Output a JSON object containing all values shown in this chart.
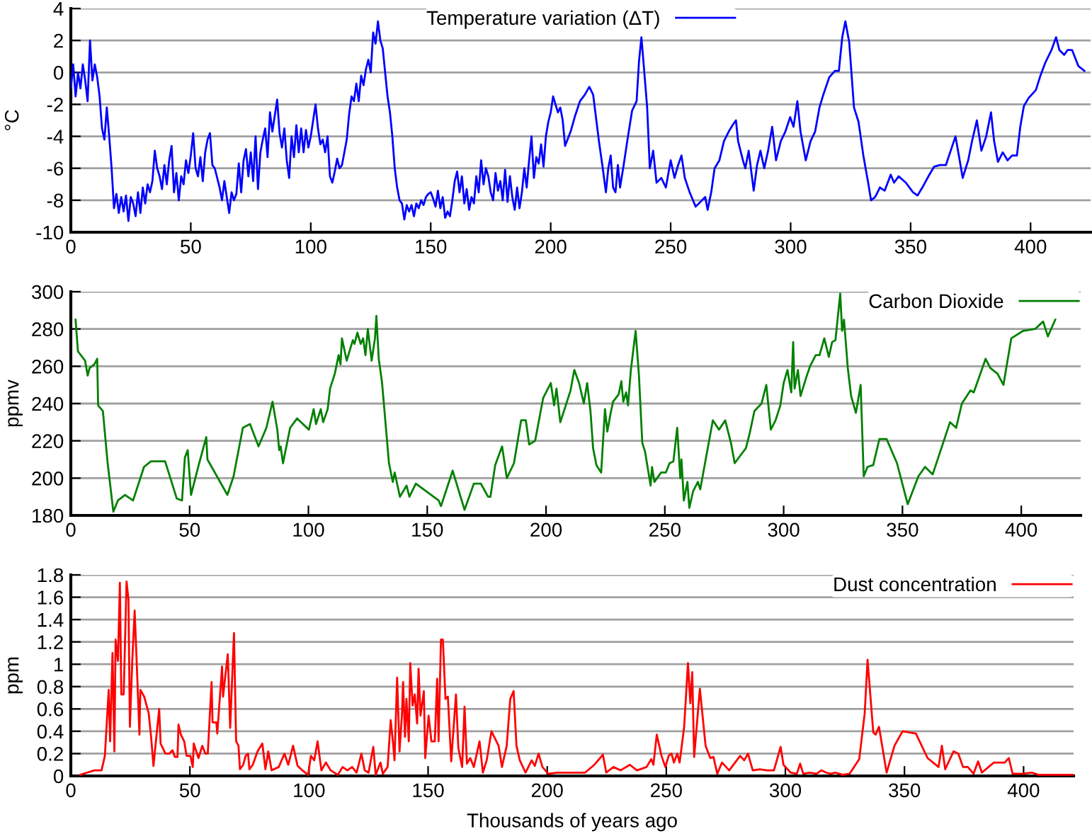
{
  "chart_data": [
    {
      "type": "line",
      "ylabel": "°C",
      "xlim": [
        0,
        425
      ],
      "xticks": [
        0,
        50,
        100,
        150,
        200,
        250,
        300,
        350,
        400
      ],
      "ylim": [
        -10,
        4
      ],
      "yticks": [
        -10,
        -8,
        -6,
        -4,
        -2,
        0,
        2,
        4
      ],
      "grid": "y",
      "legend": "top",
      "series": [
        {
          "name": "Temperature variation (ΔT)",
          "color": "#0000ff",
          "x": [
            0,
            1,
            2,
            3,
            4,
            5,
            6,
            7,
            8,
            9,
            10,
            11,
            12,
            13,
            14,
            15,
            16,
            17,
            18,
            19,
            20,
            21,
            22,
            23,
            24,
            25,
            26,
            27,
            28,
            29,
            30,
            31,
            32,
            33,
            34,
            35,
            36,
            37,
            38,
            39,
            40,
            41,
            42,
            43,
            44,
            45,
            46,
            47,
            48,
            49,
            50,
            51,
            52,
            53,
            54,
            55,
            56,
            57,
            58,
            59,
            60,
            61,
            62,
            63,
            64,
            65,
            66,
            67,
            68,
            69,
            70,
            71,
            72,
            73,
            74,
            75,
            76,
            77,
            78,
            79,
            80,
            81,
            82,
            83,
            84,
            85,
            86,
            87,
            88,
            89,
            90,
            91,
            92,
            93,
            94,
            95,
            96,
            97,
            98,
            99,
            100,
            101,
            102,
            103,
            104,
            105,
            106,
            107,
            108,
            109,
            110,
            111,
            112,
            113,
            114,
            115,
            116,
            117,
            118,
            119,
            120,
            121,
            122,
            123,
            124,
            125,
            126,
            127,
            128,
            129,
            130,
            131,
            132,
            133,
            134,
            135,
            136,
            137,
            138,
            139,
            140,
            141,
            142,
            143,
            144,
            145,
            146,
            147,
            148,
            149,
            150,
            151,
            152,
            153,
            154,
            155,
            156,
            157,
            158,
            159,
            160,
            161,
            162,
            163,
            164,
            165,
            166,
            167,
            168,
            169,
            170,
            171,
            172,
            173,
            174,
            175,
            176,
            177,
            178,
            179,
            180,
            181,
            182,
            183,
            184,
            185,
            186,
            187,
            188,
            189,
            190,
            191,
            192,
            193,
            194,
            195,
            196,
            197,
            198,
            199,
            200,
            201,
            202,
            203,
            204,
            205,
            206,
            208.3,
            210.2,
            212.2,
            214.2,
            216.1,
            217.7,
            219.1,
            220.1,
            221.7,
            223,
            224,
            225,
            226,
            227,
            228,
            228.9,
            230.3,
            231.9,
            233.9,
            235.8,
            236.8,
            237.8,
            238.8,
            240.2,
            241.3,
            242.7,
            244.1,
            246.1,
            248,
            250,
            251.6,
            253.1,
            254.5,
            255.9,
            257.9,
            260.4,
            262.4,
            264.4,
            265.4,
            266.9,
            268.3,
            270.3,
            272.2,
            274.2,
            275.8,
            277.2,
            278.1,
            280.1,
            281.1,
            282.5,
            284.6,
            286,
            287.4,
            289,
            290.6,
            292.3,
            293.9,
            295.9,
            297.8,
            299.8,
            301.2,
            302.8,
            304.1,
            306.3,
            308.3,
            310.2,
            312,
            313.6,
            316.1,
            318.5,
            320.1,
            321.5,
            322.8,
            324.4,
            326.4,
            328.3,
            330.3,
            332.3,
            333.5,
            335.2,
            337.2,
            339.2,
            341.7,
            343.1,
            345,
            348,
            351,
            352.9,
            354.9,
            357.8,
            359.8,
            362.2,
            364.7,
            366.7,
            368.7,
            370.1,
            371.7,
            374,
            375.6,
            377.6,
            379.5,
            381.5,
            383.5,
            384.8,
            386.4,
            388.4,
            390.4,
            392.3,
            394.3,
            395.7,
            397.2,
            399.2,
            402.2,
            404.1,
            406.1,
            408.7,
            410.6,
            412,
            414,
            415.4,
            417.3,
            419.9,
            422.4
          ],
          "values": [
            -1,
            0.5,
            -1.5,
            0,
            -1,
            0.5,
            -0.5,
            -1.8,
            2,
            -0.5,
            0.5,
            -0.3,
            -1.5,
            -3.5,
            -4.2,
            -2.2,
            -4,
            -6,
            -8.5,
            -7.6,
            -8.8,
            -7.8,
            -8.7,
            -7.7,
            -9.3,
            -7.8,
            -8.2,
            -9,
            -7.5,
            -8.8,
            -7.2,
            -8.2,
            -7,
            -7.5,
            -6.8,
            -4.9,
            -6,
            -6.5,
            -7.3,
            -5.8,
            -7,
            -5.5,
            -4.6,
            -7.5,
            -6.3,
            -8,
            -6.5,
            -7,
            -5.5,
            -6.3,
            -5.2,
            -3.8,
            -6,
            -6.5,
            -5.3,
            -6.8,
            -5,
            -4.2,
            -3.8,
            -5.8,
            -6,
            -6.6,
            -7.2,
            -8,
            -6.8,
            -7.8,
            -8.8,
            -7.5,
            -8,
            -7.6,
            -5.7,
            -7.5,
            -5.5,
            -4.8,
            -6.5,
            -5,
            -6.8,
            -4,
            -7.3,
            -5,
            -4.2,
            -3.5,
            -5.3,
            -2.5,
            -3.7,
            -2.7,
            -1.7,
            -3.8,
            -4.7,
            -3.5,
            -5.5,
            -6.6,
            -4,
            -5.3,
            -3.3,
            -5,
            -3.5,
            -5,
            -3.6,
            -4.7,
            -4,
            -3,
            -2,
            -3.5,
            -4.5,
            -4.2,
            -5,
            -4,
            -6.5,
            -6.9,
            -6.2,
            -5.4,
            -6,
            -5.8,
            -5,
            -4.2,
            -2.6,
            -1.5,
            -1.8,
            -0.7,
            -1.8,
            -0.2,
            -0.8,
            0.2,
            0.8,
            0,
            2.5,
            1.8,
            3.2,
            2,
            1.5,
            0,
            -1.5,
            -2.5,
            -4,
            -6,
            -7.2,
            -8,
            -8.2,
            -9.2,
            -8.3,
            -8.7,
            -8.3,
            -9,
            -8.2,
            -8.5,
            -8,
            -8.3,
            -7.8,
            -7.6,
            -7.5,
            -7.9,
            -8.4,
            -7.4,
            -8.5,
            -7.8,
            -9.1,
            -8.7,
            -9,
            -8,
            -6.8,
            -6.2,
            -7.5,
            -6.5,
            -8.2,
            -7.3,
            -8.6,
            -7.8,
            -8.2,
            -6.5,
            -7.5,
            -5.5,
            -7,
            -6,
            -6.5,
            -7.5,
            -8,
            -6.3,
            -7.4,
            -6.8,
            -8,
            -6.1,
            -8.1,
            -6.5,
            -7.8,
            -8.6,
            -7.2,
            -8.5,
            -7.5,
            -6,
            -7.2,
            -5.5,
            -4,
            -6.6,
            -5.3,
            -5.7,
            -4.5,
            -5.9,
            -4,
            -3.1,
            -2.5,
            -1.5,
            -2,
            -2.5,
            -2.2,
            -3,
            -4.6,
            -3.7,
            -2.7,
            -1.8,
            -1.4,
            -0.9,
            -1.4,
            -3.1,
            -4.3,
            -6,
            -7.5,
            -6,
            -5.2,
            -7.2,
            -7.5,
            -5.8,
            -7.2,
            -5.9,
            -4.3,
            -2.4,
            -1.8,
            0.7,
            2.2,
            0.4,
            -2.2,
            -6,
            -4.9,
            -6.9,
            -6.6,
            -7.2,
            -5.5,
            -6.6,
            -5.8,
            -5.2,
            -6.6,
            -7.5,
            -8.4,
            -8.1,
            -7.8,
            -8.6,
            -7.5,
            -6,
            -5.5,
            -4.3,
            -3.7,
            -3.3,
            -3,
            -4.3,
            -5.5,
            -6,
            -4.9,
            -7.4,
            -5.8,
            -4.9,
            -6,
            -4.9,
            -3.4,
            -5.5,
            -4.3,
            -3.7,
            -2.8,
            -3.4,
            -1.8,
            -3.7,
            -5.5,
            -4.3,
            -3.7,
            -2.2,
            -1.4,
            -0.3,
            0.1,
            0.1,
            2.2,
            3.2,
            1.9,
            -2.2,
            -3.1,
            -5.2,
            -6.9,
            -8,
            -7.8,
            -7.2,
            -7.4,
            -6.4,
            -6.9,
            -6.5,
            -6.9,
            -7.5,
            -7.7,
            -7.2,
            -6.4,
            -5.9,
            -5.8,
            -5.8,
            -4.9,
            -4,
            -5.2,
            -6.6,
            -5.5,
            -4.3,
            -3,
            -4.9,
            -4,
            -2.5,
            -4.3,
            -5.6,
            -5,
            -5.5,
            -5.2,
            -5.2,
            -3.4,
            -2.1,
            -1.6,
            -1.1,
            -0.2,
            0.6,
            1.4,
            2.2,
            1.4,
            1.1,
            1.4,
            1.4,
            0.4,
            0.1
          ]
        }
      ]
    },
    {
      "type": "line",
      "ylabel": "ppmv",
      "xlim": [
        0,
        425
      ],
      "xticks": [
        0,
        50,
        100,
        150,
        200,
        250,
        300,
        350,
        400
      ],
      "ylim": [
        180,
        300
      ],
      "yticks": [
        180,
        200,
        220,
        240,
        260,
        280,
        300
      ],
      "grid": "y",
      "legend": "top right",
      "series": [
        {
          "name": "Carbon Dioxide",
          "color": "#008000",
          "x": [
            2,
            3,
            6,
            7.1,
            7.9,
            9.9,
            11.1,
            11.5,
            13.5,
            15.5,
            17.9,
            19.8,
            22.8,
            26.2,
            30.8,
            33.7,
            39.7,
            44.6,
            46.8,
            48,
            49.2,
            50.6,
            53.6,
            57,
            57.5,
            61.5,
            65.9,
            68.5,
            72.4,
            75.4,
            79,
            82.3,
            84.9,
            86.9,
            87.7,
            88.3,
            89.3,
            92.3,
            95.2,
            100.2,
            102.2,
            103.2,
            105.2,
            106.2,
            108.1,
            109.1,
            111.1,
            112.7,
            113.5,
            114.1,
            116.1,
            118.7,
            119.4,
            120.6,
            122,
            123,
            124,
            125,
            126.6,
            128,
            128.6,
            129.6,
            131,
            133.9,
            135.5,
            136.3,
            138.5,
            141.3,
            142.5,
            145.2,
            154.8,
            155.8,
            160.7,
            165.7,
            169.6,
            172.6,
            175.6,
            176.6,
            178.6,
            181.5,
            183.5,
            186.5,
            189.5,
            191.5,
            192.9,
            195.4,
            198.8,
            200.4,
            202,
            203.4,
            204.4,
            206,
            208.3,
            210.3,
            211.9,
            213.9,
            215.9,
            217.3,
            218.7,
            219.8,
            220.6,
            221.2,
            223.2,
            224.8,
            225.8,
            227.2,
            228.2,
            230.6,
            231.7,
            232.5,
            233.7,
            234.5,
            235.7,
            237.7,
            239.1,
            240.5,
            241.7,
            244,
            244.6,
            245.6,
            248.4,
            250.4,
            252,
            253.6,
            255.2,
            256.5,
            257,
            258,
            259.5,
            260.3,
            261.9,
            263.9,
            264.9,
            266.9,
            270.2,
            272.8,
            275.4,
            277.8,
            279.4,
            281.7,
            284.1,
            285.7,
            287.7,
            290.7,
            292.7,
            294.6,
            296.6,
            298.6,
            300,
            301.6,
            303.2,
            304,
            304.6,
            306,
            307.1,
            309.5,
            311.1,
            313.5,
            315.1,
            317.1,
            319,
            320.4,
            321.8,
            323,
            323.8,
            324.6,
            325.4,
            327,
            328.4,
            330.4,
            332.4,
            333.7,
            335.3,
            337.7,
            340.3,
            343.3,
            347.7,
            352.2,
            356.7,
            359.5,
            362.7,
            366.1,
            370,
            372.6,
            375,
            378.6,
            380,
            385,
            387,
            390,
            392.5,
            395.8,
            400.8,
            405.8,
            409.2,
            411.2,
            414.3
          ],
          "values": [
            285,
            268,
            263,
            255,
            259,
            261,
            264,
            239,
            236,
            208,
            182,
            188,
            191,
            188,
            206,
            209,
            209,
            189,
            188,
            211,
            215,
            191,
            206,
            222,
            210,
            201,
            191,
            201,
            227,
            229,
            217,
            227,
            241,
            226,
            215,
            217,
            208,
            227,
            232,
            226,
            237,
            229,
            237,
            230,
            237,
            248,
            256,
            266,
            261,
            275,
            263,
            274,
            272,
            278,
            272,
            275,
            266,
            280,
            263,
            275,
            287,
            264,
            251,
            208,
            198,
            203,
            190,
            196,
            190,
            197,
            188,
            185,
            204,
            183,
            197,
            197,
            190,
            190,
            207,
            217,
            200,
            208,
            231,
            231,
            218,
            220,
            243,
            247,
            251,
            239,
            248,
            230,
            239,
            247,
            258,
            251,
            240,
            251,
            236,
            216,
            211,
            207,
            203,
            237,
            225,
            235,
            241,
            245,
            252,
            241,
            246,
            239,
            258,
            279,
            255,
            219,
            214,
            196,
            206,
            198,
            203,
            203,
            208,
            209,
            227,
            200,
            210,
            188,
            198,
            184,
            193,
            198,
            194,
            208,
            231,
            226,
            231,
            219,
            208,
            212,
            216,
            224,
            236,
            240,
            250,
            226,
            231,
            239,
            251,
            258,
            246,
            273,
            248,
            258,
            244,
            254,
            260,
            266,
            266,
            275,
            265,
            273,
            274,
            289,
            299,
            279,
            285,
            259,
            244,
            235,
            250,
            201,
            206,
            207,
            221,
            221,
            208,
            186,
            201,
            206,
            202,
            215,
            230,
            227,
            240,
            247,
            246,
            264,
            259,
            256,
            250,
            275,
            279,
            280,
            284,
            276,
            285
          ]
        }
      ]
    },
    {
      "type": "line",
      "ylabel": "ppm",
      "xlabel": "Thousands of years ago",
      "xlim": [
        0,
        421
      ],
      "xticks": [
        0,
        50,
        100,
        150,
        200,
        250,
        300,
        350,
        400
      ],
      "ylim": [
        0,
        1.8
      ],
      "yticks": [
        0,
        0.2,
        0.4,
        0.6,
        0.8,
        1,
        1.2,
        1.4,
        1.6,
        1.8
      ],
      "grid": "y",
      "legend": "top right",
      "series": [
        {
          "name": "Dust concentration",
          "color": "#ff0000",
          "x": [
            4,
            6.9,
            9.9,
            12.9,
            14.3,
            15.9,
            16.5,
            17.5,
            18.3,
            18.8,
            19.8,
            20.6,
            21.2,
            22.2,
            23.4,
            24.2,
            24.8,
            25.8,
            26.8,
            27.8,
            28.8,
            29.2,
            30.8,
            32.7,
            33.7,
            34.7,
            36.1,
            37.1,
            37.7,
            39.7,
            41.3,
            42.7,
            43.7,
            44.8,
            45.2,
            46.2,
            47.6,
            48.6,
            50.2,
            51.2,
            51.6,
            53.6,
            55.2,
            56.5,
            57.5,
            59.1,
            59.5,
            61.1,
            61.5,
            63.5,
            63.9,
            65.9,
            66.9,
            68.5,
            69.4,
            70.4,
            71,
            72.4,
            73.4,
            74.4,
            75,
            76.4,
            78.4,
            80.4,
            81.7,
            82.9,
            84.3,
            87.3,
            89.7,
            91.3,
            93.3,
            95.2,
            97.2,
            99.6,
            100.8,
            102.2,
            103.6,
            105.2,
            107.1,
            109.1,
            112.1,
            114.1,
            116.1,
            118.1,
            120,
            122,
            123.4,
            125,
            127,
            128,
            130,
            131,
            133,
            134.3,
            135.3,
            135.9,
            137,
            138,
            139,
            139.5,
            140.3,
            140.9,
            141.9,
            142.5,
            143.5,
            144.4,
            145.4,
            146,
            146.8,
            148.2,
            148.8,
            150.2,
            151.4,
            152.8,
            153.8,
            154.4,
            155.4,
            156.2,
            157.3,
            158.3,
            159.7,
            161.7,
            162.7,
            164.3,
            165.3,
            166.3,
            167.7,
            169.2,
            171.6,
            173,
            174.6,
            176.6,
            179.6,
            181,
            183,
            184.5,
            185.9,
            187.1,
            188.5,
            190.9,
            193.5,
            194.8,
            196.4,
            198,
            200.4,
            204.4,
            208,
            215.9,
            219.8,
            223.4,
            224.8,
            227.8,
            230.8,
            234.7,
            237.7,
            241.7,
            243.7,
            244.6,
            246,
            248,
            249.6,
            251,
            252.2,
            253.2,
            254.6,
            255.6,
            257.5,
            259.1,
            260.1,
            260.9,
            261.7,
            264.1,
            266.5,
            268.5,
            269.8,
            271.4,
            273.4,
            276.4,
            281,
            282.7,
            284.3,
            286.3,
            289.3,
            292.3,
            295.2,
            298,
            299.2,
            302.2,
            304.8,
            306.2,
            307.5,
            310.1,
            313.1,
            315.1,
            317.1,
            319,
            321,
            324,
            327,
            331,
            333.3,
            334.5,
            336.9,
            337.9,
            339.3,
            342.5,
            345.8,
            349.2,
            354.8,
            359.7,
            364.3,
            365.7,
            367.1,
            370.6,
            372.6,
            374.6,
            376.6,
            379,
            380.9,
            382.5,
            387.5,
            392.1,
            393.8,
            395.4,
            399.4,
            403.4,
            406.3,
            412.3,
            421
          ],
          "values": [
            0.01,
            0.03,
            0.05,
            0.05,
            0.18,
            0.77,
            0.31,
            1.1,
            0.22,
            1.22,
            1.03,
            1.73,
            0.73,
            0.73,
            1.74,
            1.58,
            0.44,
            1.03,
            1.48,
            0.94,
            0.37,
            0.77,
            0.71,
            0.56,
            0.35,
            0.09,
            0.39,
            0.6,
            0.29,
            0.2,
            0.2,
            0.23,
            0.17,
            0.17,
            0.46,
            0.37,
            0.31,
            0.18,
            0.18,
            0.08,
            0.29,
            0.16,
            0.27,
            0.2,
            0.2,
            0.84,
            0.48,
            0.48,
            0.38,
            0.98,
            0.71,
            1.09,
            0.43,
            1.28,
            0.31,
            0.27,
            0.06,
            0.1,
            0.18,
            0.2,
            0.06,
            0.1,
            0.22,
            0.29,
            0.06,
            0.22,
            0.05,
            0.08,
            0.2,
            0.1,
            0.27,
            0.09,
            0.05,
            0.01,
            0.18,
            0.14,
            0.31,
            0.05,
            0.12,
            0.05,
            0.01,
            0.08,
            0.05,
            0.08,
            0.03,
            0.2,
            0.05,
            0.03,
            0.26,
            0.01,
            0.12,
            0.02,
            0.08,
            0.5,
            0.29,
            0.14,
            0.88,
            0.22,
            0.54,
            0.84,
            0.35,
            0.69,
            0.31,
            1.01,
            0.63,
            0.73,
            0.47,
            0.96,
            0.54,
            0.76,
            0.16,
            0.54,
            0.31,
            0.31,
            0.87,
            0.31,
            1.22,
            1.22,
            0.69,
            0.71,
            0.13,
            0.73,
            0.25,
            0.08,
            0.62,
            0.11,
            0.16,
            0.08,
            0.31,
            0.03,
            0.14,
            0.4,
            0.27,
            0.08,
            0.27,
            0.69,
            0.76,
            0.27,
            0.14,
            0.03,
            0.14,
            0.09,
            0.2,
            0.08,
            0.02,
            0.03,
            0.03,
            0.03,
            0.1,
            0.19,
            0.03,
            0.08,
            0.05,
            0.1,
            0.05,
            0.08,
            0.15,
            0.1,
            0.37,
            0.18,
            0.08,
            0.18,
            0.2,
            0.12,
            0.2,
            0.12,
            0.44,
            1.01,
            0.65,
            0.93,
            0.17,
            0.78,
            0.27,
            0.16,
            0.17,
            0.02,
            0.12,
            0.05,
            0.18,
            0.14,
            0.2,
            0.05,
            0.06,
            0.05,
            0.05,
            0.26,
            0.1,
            0.03,
            0.02,
            0.11,
            0.02,
            0.03,
            0.02,
            0.05,
            0.03,
            0.02,
            0.03,
            0.01,
            0.02,
            0.15,
            0.56,
            1.04,
            0.39,
            0.37,
            0.44,
            0.03,
            0.27,
            0.4,
            0.38,
            0.16,
            0.08,
            0.27,
            0.06,
            0.22,
            0.2,
            0.08,
            0.08,
            0.02,
            0.13,
            0.03,
            0.12,
            0.12,
            0.16,
            0.02,
            0.02,
            0.03,
            0.01,
            0.01,
            0.01
          ]
        }
      ]
    }
  ]
}
